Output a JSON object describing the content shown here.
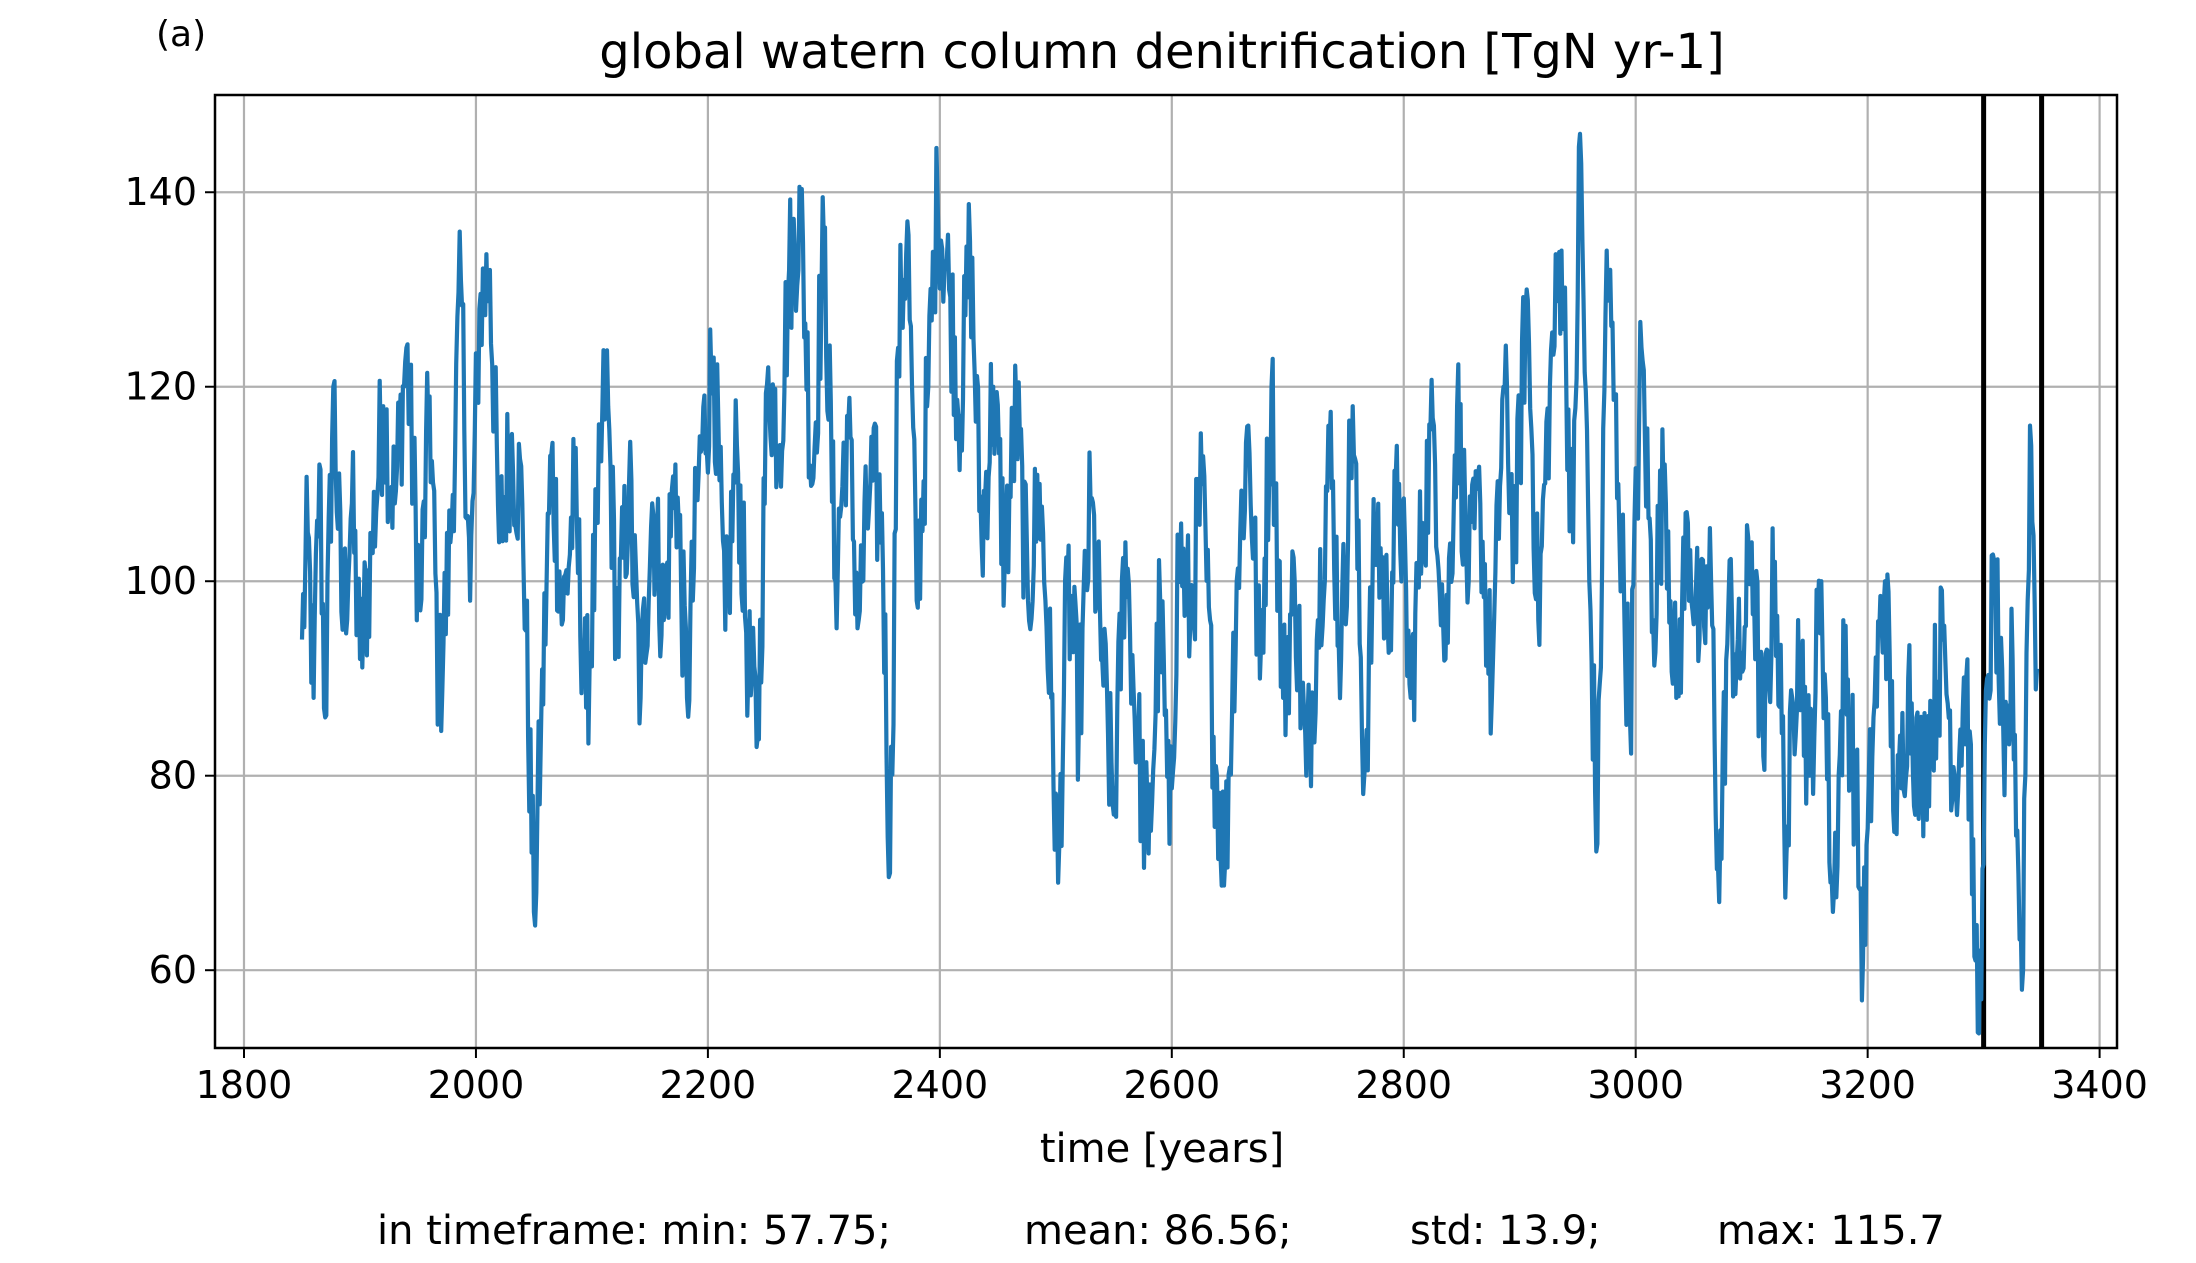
{
  "panel_label": "(a)",
  "stats": {
    "min": "in timeframe: min: 57.75;",
    "mean": "mean: 86.56;",
    "std": "std: 13.9;",
    "max": "max: 115.7"
  },
  "chart_data": {
    "type": "line",
    "title": "global watern column denitrification [TgN yr-1]",
    "xlabel": "time [years]",
    "ylabel": "",
    "xlim": [
      1775,
      3415
    ],
    "ylim": [
      52,
      150
    ],
    "xticks": [
      1800,
      2000,
      2200,
      2400,
      2600,
      2800,
      3000,
      3200,
      3400
    ],
    "yticks": [
      60,
      80,
      100,
      120,
      140
    ],
    "grid": true,
    "line_color": "#1f77b4",
    "vlines": [
      3300,
      3350
    ],
    "vline_color": "#000000",
    "anchors": [
      [
        1850,
        94
      ],
      [
        1855,
        105
      ],
      [
        1860,
        88
      ],
      [
        1865,
        112
      ],
      [
        1870,
        86
      ],
      [
        1877,
        120
      ],
      [
        1885,
        95
      ],
      [
        1893,
        108
      ],
      [
        1900,
        92
      ],
      [
        1910,
        103
      ],
      [
        1920,
        118
      ],
      [
        1930,
        108
      ],
      [
        1940,
        124
      ],
      [
        1952,
        97
      ],
      [
        1960,
        119
      ],
      [
        1968,
        88
      ],
      [
        1978,
        104
      ],
      [
        1987,
        131
      ],
      [
        1995,
        98
      ],
      [
        2003,
        128
      ],
      [
        2012,
        132
      ],
      [
        2020,
        104
      ],
      [
        2030,
        114
      ],
      [
        2040,
        108
      ],
      [
        2050,
        66
      ],
      [
        2056,
        84
      ],
      [
        2065,
        113
      ],
      [
        2075,
        96
      ],
      [
        2085,
        109
      ],
      [
        2095,
        87
      ],
      [
        2105,
        106
      ],
      [
        2112,
        122
      ],
      [
        2122,
        94
      ],
      [
        2132,
        110
      ],
      [
        2142,
        88
      ],
      [
        2152,
        108
      ],
      [
        2162,
        96
      ],
      [
        2172,
        112
      ],
      [
        2182,
        88
      ],
      [
        2192,
        111
      ],
      [
        2205,
        123
      ],
      [
        2215,
        95
      ],
      [
        2225,
        114
      ],
      [
        2235,
        91
      ],
      [
        2243,
        84
      ],
      [
        2252,
        122
      ],
      [
        2262,
        114
      ],
      [
        2270,
        132
      ],
      [
        2280,
        138
      ],
      [
        2290,
        110
      ],
      [
        2300,
        135
      ],
      [
        2310,
        100
      ],
      [
        2320,
        117
      ],
      [
        2330,
        96
      ],
      [
        2340,
        110
      ],
      [
        2350,
        107
      ],
      [
        2357,
        70
      ],
      [
        2364,
        124
      ],
      [
        2372,
        137
      ],
      [
        2380,
        98
      ],
      [
        2390,
        120
      ],
      [
        2398,
        140
      ],
      [
        2408,
        130
      ],
      [
        2418,
        117
      ],
      [
        2426,
        135
      ],
      [
        2436,
        104
      ],
      [
        2446,
        120
      ],
      [
        2456,
        102
      ],
      [
        2466,
        118
      ],
      [
        2476,
        98
      ],
      [
        2486,
        110
      ],
      [
        2496,
        88
      ],
      [
        2502,
        69
      ],
      [
        2510,
        100
      ],
      [
        2520,
        86
      ],
      [
        2530,
        108
      ],
      [
        2540,
        92
      ],
      [
        2550,
        76
      ],
      [
        2560,
        104
      ],
      [
        2570,
        84
      ],
      [
        2580,
        72
      ],
      [
        2590,
        98
      ],
      [
        2598,
        73
      ],
      [
        2606,
        104
      ],
      [
        2616,
        96
      ],
      [
        2626,
        110
      ],
      [
        2636,
        84
      ],
      [
        2646,
        71
      ],
      [
        2656,
        100
      ],
      [
        2666,
        116
      ],
      [
        2676,
        90
      ],
      [
        2686,
        120
      ],
      [
        2696,
        88
      ],
      [
        2706,
        100
      ],
      [
        2716,
        80
      ],
      [
        2726,
        96
      ],
      [
        2736,
        114
      ],
      [
        2746,
        92
      ],
      [
        2756,
        118
      ],
      [
        2766,
        80
      ],
      [
        2776,
        106
      ],
      [
        2786,
        96
      ],
      [
        2796,
        110
      ],
      [
        2806,
        88
      ],
      [
        2816,
        106
      ],
      [
        2826,
        116
      ],
      [
        2836,
        92
      ],
      [
        2846,
        118
      ],
      [
        2856,
        100
      ],
      [
        2866,
        108
      ],
      [
        2876,
        88
      ],
      [
        2886,
        120
      ],
      [
        2896,
        104
      ],
      [
        2906,
        130
      ],
      [
        2916,
        96
      ],
      [
        2926,
        120
      ],
      [
        2936,
        134
      ],
      [
        2946,
        104
      ],
      [
        2952,
        146
      ],
      [
        2960,
        100
      ],
      [
        2967,
        73
      ],
      [
        2975,
        134
      ],
      [
        2985,
        110
      ],
      [
        2995,
        86
      ],
      [
        3005,
        124
      ],
      [
        3015,
        96
      ],
      [
        3025,
        112
      ],
      [
        3035,
        88
      ],
      [
        3045,
        106
      ],
      [
        3055,
        94
      ],
      [
        3065,
        100
      ],
      [
        3072,
        67
      ],
      [
        3080,
        98
      ],
      [
        3090,
        90
      ],
      [
        3100,
        104
      ],
      [
        3110,
        82
      ],
      [
        3120,
        102
      ],
      [
        3130,
        72
      ],
      [
        3140,
        96
      ],
      [
        3150,
        80
      ],
      [
        3160,
        100
      ],
      [
        3170,
        66
      ],
      [
        3180,
        92
      ],
      [
        3190,
        78
      ],
      [
        3196,
        61
      ],
      [
        3205,
        86
      ],
      [
        3215,
        100
      ],
      [
        3225,
        74
      ],
      [
        3235,
        90
      ],
      [
        3245,
        79
      ],
      [
        3255,
        86
      ],
      [
        3265,
        94
      ],
      [
        3275,
        80
      ],
      [
        3285,
        90
      ],
      [
        3293,
        61
      ],
      [
        3298,
        57
      ],
      [
        3303,
        90
      ],
      [
        3310,
        100
      ],
      [
        3318,
        78
      ],
      [
        3325,
        92
      ],
      [
        3333,
        58
      ],
      [
        3340,
        116
      ],
      [
        3346,
        91
      ]
    ]
  }
}
